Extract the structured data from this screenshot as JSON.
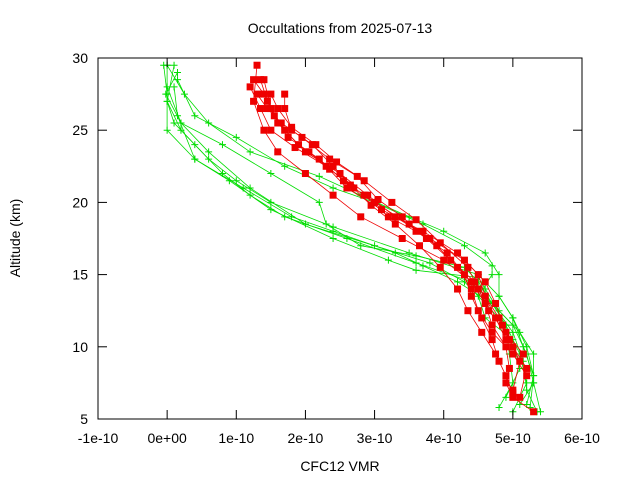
{
  "chart_data": {
    "type": "line",
    "title": "Occultations from 2025-07-13",
    "xlabel": "CFC12 VMR",
    "ylabel": "Altitude (km)",
    "xlim": [
      -1e-10,
      6e-10
    ],
    "ylim": [
      5,
      30
    ],
    "x_ticks": [
      -1e-10,
      0,
      1e-10,
      2e-10,
      3e-10,
      4e-10,
      5e-10,
      6e-10
    ],
    "x_tick_labels": [
      "-1e-10",
      "0e+00",
      "1e-10",
      "2e-10",
      "3e-10",
      "4e-10",
      "5e-10",
      "6e-10"
    ],
    "y_ticks": [
      5,
      10,
      15,
      20,
      25,
      30
    ],
    "y_tick_labels": [
      "5",
      "10",
      "15",
      "20",
      "25",
      "30"
    ],
    "grid": false,
    "colors": {
      "green": "#00dd00",
      "red": "#ee0000"
    },
    "series": [
      {
        "style": "green-plus",
        "points": [
          [
            5.35e-10,
            5.5
          ],
          [
            5.2e-10,
            7
          ],
          [
            5.15e-10,
            9
          ],
          [
            5e-10,
            11
          ],
          [
            4.7e-10,
            13
          ],
          [
            4.4e-10,
            14.5
          ],
          [
            3.6e-10,
            15.8
          ],
          [
            2.6e-10,
            17.5
          ],
          [
            1.7e-10,
            19
          ],
          [
            1.2e-10,
            20.5
          ],
          [
            8e-11,
            22
          ],
          [
            4e-11,
            24
          ],
          [
            1e-11,
            25.5
          ],
          [
            0,
            27
          ],
          [
            1e-11,
            29.5
          ]
        ]
      },
      {
        "style": "green-plus",
        "points": [
          [
            5.2e-10,
            6
          ],
          [
            5.3e-10,
            8
          ],
          [
            5.15e-10,
            10
          ],
          [
            5e-10,
            12
          ],
          [
            4.8e-10,
            13.5
          ],
          [
            4.5e-10,
            15
          ],
          [
            3.5e-10,
            16.5
          ],
          [
            2.4e-10,
            18.3
          ],
          [
            1.5e-10,
            20
          ],
          [
            1e-10,
            21.5
          ],
          [
            6e-11,
            23
          ],
          [
            2e-11,
            25
          ],
          [
            0,
            27
          ],
          [
            0,
            29.5
          ]
        ]
      },
      {
        "style": "green-plus",
        "points": [
          [
            5e-10,
            5.5
          ],
          [
            5.2e-10,
            7.5
          ],
          [
            5.1e-10,
            9.5
          ],
          [
            4.9e-10,
            11.5
          ],
          [
            4.6e-10,
            13
          ],
          [
            4.3e-10,
            14.5
          ],
          [
            3.8e-10,
            15.8
          ],
          [
            3e-10,
            17
          ],
          [
            2e-10,
            18.5
          ],
          [
            1.2e-10,
            21
          ],
          [
            6e-11,
            23.5
          ],
          [
            2e-11,
            25.5
          ],
          [
            -2e-12,
            27.5
          ],
          [
            1.5e-11,
            29
          ]
        ]
      },
      {
        "style": "green-plus",
        "points": [
          [
            5.4e-10,
            5.5
          ],
          [
            5.3e-10,
            7.5
          ],
          [
            5.2e-10,
            9.5
          ],
          [
            5e-10,
            11.5
          ],
          [
            4.7e-10,
            13
          ],
          [
            4.2e-10,
            14.5
          ],
          [
            3.7e-10,
            15.6
          ],
          [
            3.3e-10,
            16.5
          ],
          [
            2.4e-10,
            18
          ],
          [
            1.8e-10,
            19
          ],
          [
            1.1e-10,
            21
          ],
          [
            4e-11,
            23
          ],
          [
            0,
            25
          ],
          [
            0,
            27.5
          ],
          [
            -5e-12,
            29.5
          ]
        ]
      },
      {
        "style": "green-plus",
        "points": [
          [
            4.8e-10,
            5.8
          ],
          [
            5e-10,
            7.5
          ],
          [
            4.95e-10,
            9.5
          ],
          [
            4.9e-10,
            11.5
          ],
          [
            4.7e-10,
            13
          ],
          [
            4.5e-10,
            14.5
          ],
          [
            4.3e-10,
            15.5
          ],
          [
            3.6e-10,
            16.3
          ],
          [
            2.8e-10,
            17
          ],
          [
            2.3e-10,
            18.5
          ],
          [
            2.2e-10,
            20
          ],
          [
            1.5e-10,
            22
          ],
          [
            8e-11,
            24
          ],
          [
            2e-11,
            25.5
          ],
          [
            0,
            28
          ]
        ]
      },
      {
        "style": "green-plus",
        "points": [
          [
            5.1e-10,
            6
          ],
          [
            5.3e-10,
            7.5
          ],
          [
            5.3e-10,
            9.5
          ],
          [
            5.1e-10,
            11
          ],
          [
            4.8e-10,
            12.5
          ],
          [
            4.6e-10,
            14
          ],
          [
            4.5e-10,
            14.8
          ],
          [
            3.6e-10,
            15.3
          ],
          [
            3.2e-10,
            16
          ],
          [
            2.4e-10,
            17.5
          ],
          [
            1.5e-10,
            19.5
          ],
          [
            9e-11,
            21.5
          ],
          [
            4e-11,
            23
          ],
          [
            1.5e-11,
            26
          ],
          [
            1e-11,
            28
          ]
        ]
      },
      {
        "style": "green-plus",
        "points": [
          [
            4.9e-10,
            6.5
          ],
          [
            5.1e-10,
            8.5
          ],
          [
            5e-10,
            10.5
          ],
          [
            4.6e-10,
            12
          ],
          [
            4.5e-10,
            13.5
          ],
          [
            4.7e-10,
            15
          ],
          [
            4.7e-10,
            15.6
          ],
          [
            4.3e-10,
            17
          ],
          [
            3.7e-10,
            18.5
          ],
          [
            3e-10,
            20
          ],
          [
            2.4e-10,
            21
          ],
          [
            1.7e-10,
            22.5
          ],
          [
            1e-10,
            24.5
          ],
          [
            4e-11,
            26
          ],
          [
            1.5e-11,
            28.5
          ]
        ]
      },
      {
        "style": "green-plus",
        "points": [
          [
            5.25e-10,
            5.8
          ],
          [
            5.3e-10,
            8
          ],
          [
            5.2e-10,
            10
          ],
          [
            5e-10,
            12
          ],
          [
            4.8e-10,
            13.5
          ],
          [
            4.8e-10,
            15
          ],
          [
            4.6e-10,
            16.5
          ],
          [
            4e-10,
            18
          ],
          [
            3.5e-10,
            19
          ],
          [
            2.8e-10,
            20.5
          ],
          [
            2.2e-10,
            21.8
          ],
          [
            1.2e-10,
            23.5
          ],
          [
            6e-11,
            25.5
          ],
          [
            2.5e-11,
            27.5
          ],
          [
            0,
            29.5
          ]
        ]
      },
      {
        "style": "red-square",
        "points": [
          [
            5.3e-10,
            5.5
          ],
          [
            5e-10,
            6.5
          ],
          [
            4.9e-10,
            7.5
          ],
          [
            4.95e-10,
            8.5
          ],
          [
            4.9e-10,
            10
          ],
          [
            4.7e-10,
            11.5
          ],
          [
            4.6e-10,
            13
          ],
          [
            4.4e-10,
            14.5
          ],
          [
            4e-10,
            16
          ],
          [
            3.4e-10,
            17.5
          ],
          [
            2.8e-10,
            19
          ],
          [
            2.4e-10,
            20.5
          ],
          [
            2e-10,
            22
          ],
          [
            1.6e-10,
            23.5
          ],
          [
            1.4e-10,
            25
          ],
          [
            1.25e-10,
            27
          ],
          [
            1.3e-10,
            29.5
          ]
        ]
      },
      {
        "style": "red-square",
        "points": [
          [
            5.1e-10,
            6.5
          ],
          [
            5.2e-10,
            8.5
          ],
          [
            5e-10,
            10
          ],
          [
            4.85e-10,
            11.5
          ],
          [
            4.75e-10,
            13
          ],
          [
            4.6e-10,
            14.5
          ],
          [
            4.3e-10,
            16
          ],
          [
            3.8e-10,
            17.5
          ],
          [
            3.3e-10,
            19
          ],
          [
            2.9e-10,
            20.5
          ],
          [
            2.5e-10,
            22
          ],
          [
            2e-10,
            23.5
          ],
          [
            1.7e-10,
            25
          ],
          [
            1.5e-10,
            26.5
          ],
          [
            1.4e-10,
            28.5
          ]
        ]
      },
      {
        "style": "red-square",
        "points": [
          [
            5e-10,
            7
          ],
          [
            5.1e-10,
            9
          ],
          [
            4.95e-10,
            10.5
          ],
          [
            4.8e-10,
            12
          ],
          [
            4.6e-10,
            13.5
          ],
          [
            4.5e-10,
            15
          ],
          [
            4.2e-10,
            16.5
          ],
          [
            3.7e-10,
            18
          ],
          [
            3.1e-10,
            19.5
          ],
          [
            2.6e-10,
            21
          ],
          [
            2.3e-10,
            22.5
          ],
          [
            1.85e-10,
            23.8
          ],
          [
            1.5e-10,
            25
          ],
          [
            1.35e-10,
            26.5
          ],
          [
            1.2e-10,
            28
          ]
        ]
      },
      {
        "style": "red-square",
        "points": [
          [
            5.2e-10,
            8
          ],
          [
            5e-10,
            9.5
          ],
          [
            4.7e-10,
            11
          ],
          [
            4.5e-10,
            12.5
          ],
          [
            4.4e-10,
            14
          ],
          [
            4.2e-10,
            15.5
          ],
          [
            3.9e-10,
            17
          ],
          [
            3.5e-10,
            18.5
          ],
          [
            3e-10,
            20
          ],
          [
            2.7e-10,
            21
          ],
          [
            2.4e-10,
            22.5
          ],
          [
            2.1e-10,
            24
          ],
          [
            1.8e-10,
            25
          ],
          [
            1.7e-10,
            26.5
          ],
          [
            1.7e-10,
            27.5
          ]
        ]
      },
      {
        "style": "red-square",
        "points": [
          [
            4.8e-10,
            9
          ],
          [
            4.7e-10,
            10.5
          ],
          [
            4.55e-10,
            12
          ],
          [
            4.4e-10,
            13.5
          ],
          [
            4.3e-10,
            15
          ],
          [
            4.05e-10,
            16.5
          ],
          [
            3.6e-10,
            18
          ],
          [
            3.2e-10,
            19
          ],
          [
            2.85e-10,
            20.5
          ],
          [
            2.55e-10,
            21.5
          ],
          [
            2.2e-10,
            23
          ],
          [
            1.9e-10,
            24
          ],
          [
            1.6e-10,
            25.5
          ],
          [
            1.45e-10,
            27
          ],
          [
            1.35e-10,
            28.5
          ]
        ]
      },
      {
        "style": "red-square",
        "points": [
          [
            5e-10,
            6.8
          ],
          [
            4.9e-10,
            8
          ],
          [
            4.75e-10,
            9.5
          ],
          [
            4.55e-10,
            11
          ],
          [
            4.35e-10,
            12.5
          ],
          [
            4.2e-10,
            14
          ],
          [
            3.95e-10,
            15.5
          ],
          [
            3.65e-10,
            17
          ],
          [
            3.3e-10,
            18.5
          ],
          [
            2.95e-10,
            19.8
          ],
          [
            2.65e-10,
            21.2
          ],
          [
            2.35e-10,
            22.3
          ],
          [
            2.05e-10,
            23.5
          ],
          [
            1.75e-10,
            24.5
          ],
          [
            1.55e-10,
            26
          ],
          [
            1.4e-10,
            27.5
          ],
          [
            1.25e-10,
            28.5
          ]
        ]
      },
      {
        "style": "red-square",
        "points": [
          [
            5.15e-10,
            9.5
          ],
          [
            4.9e-10,
            11
          ],
          [
            4.65e-10,
            12.5
          ],
          [
            4.5e-10,
            14
          ],
          [
            4.35e-10,
            15.5
          ],
          [
            3.95e-10,
            17.2
          ],
          [
            3.6e-10,
            18.8
          ],
          [
            3.25e-10,
            20
          ],
          [
            2.85e-10,
            21.5
          ],
          [
            2.45e-10,
            22.8
          ],
          [
            2.15e-10,
            24
          ],
          [
            1.8e-10,
            25.2
          ],
          [
            1.6e-10,
            26.5
          ],
          [
            1.5e-10,
            27.5
          ]
        ]
      },
      {
        "style": "red-square",
        "points": [
          [
            4.9e-10,
            10.5
          ],
          [
            4.75e-10,
            12
          ],
          [
            4.6e-10,
            13.5
          ],
          [
            4.45e-10,
            14.5
          ],
          [
            4.1e-10,
            16
          ],
          [
            3.75e-10,
            17.5
          ],
          [
            3.4e-10,
            19
          ],
          [
            3.05e-10,
            20.2
          ],
          [
            2.75e-10,
            21.8
          ],
          [
            2.35e-10,
            23
          ],
          [
            1.95e-10,
            24.5
          ],
          [
            1.65e-10,
            25.5
          ],
          [
            1.45e-10,
            26.5
          ],
          [
            1.3e-10,
            27.5
          ]
        ]
      }
    ]
  }
}
